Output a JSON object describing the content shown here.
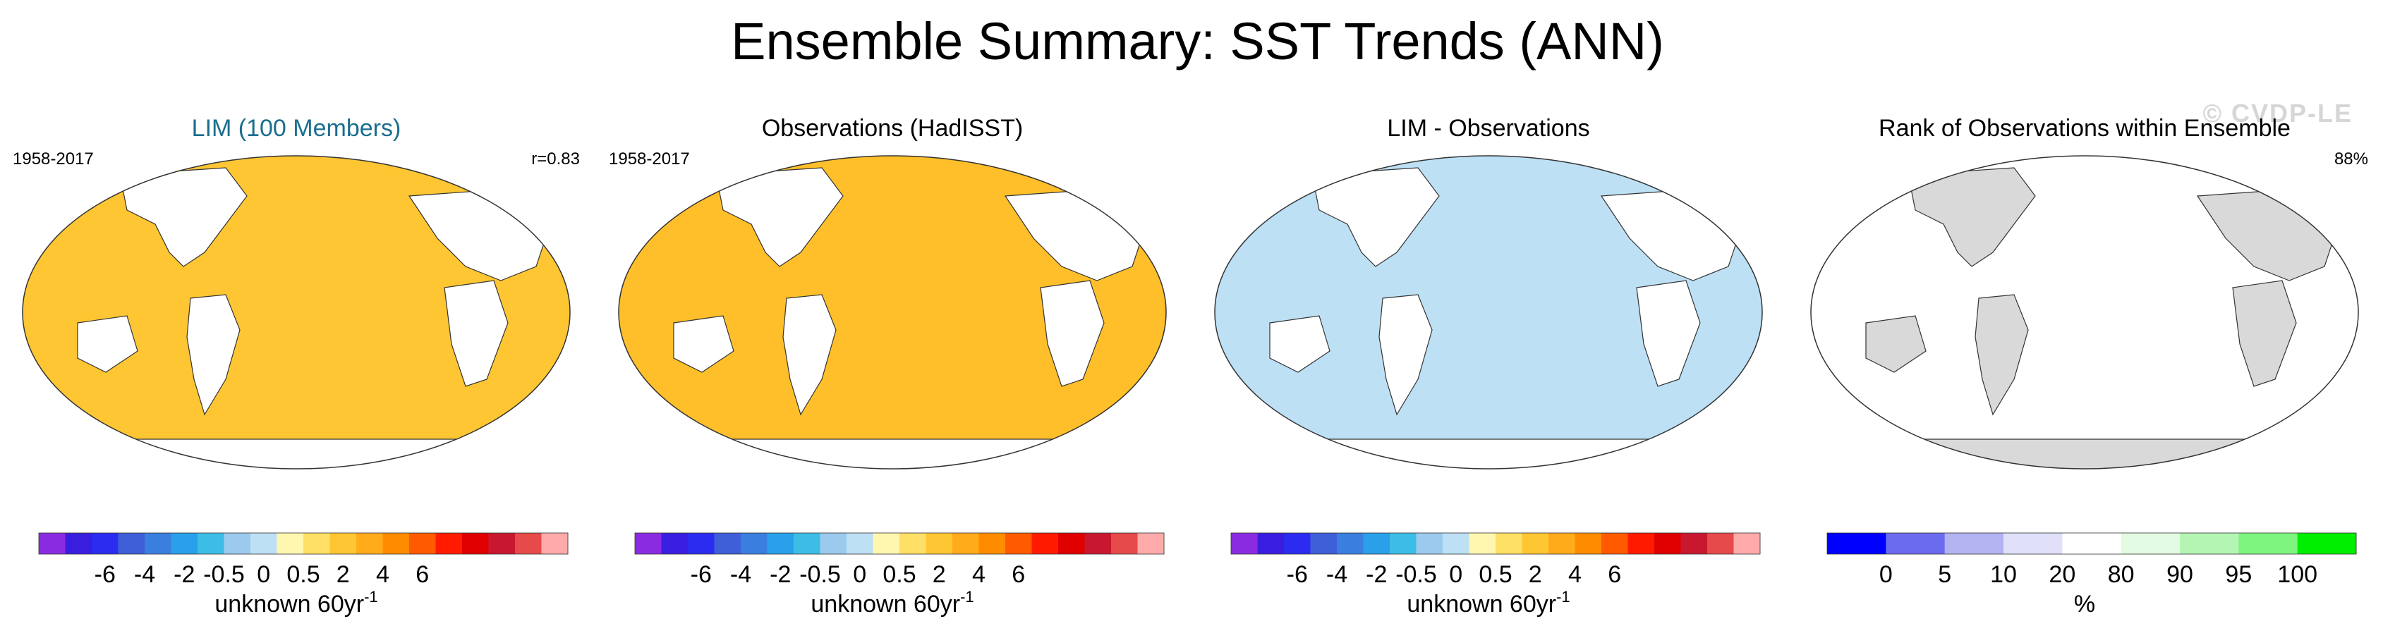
{
  "title": "Ensemble Summary: SST Trends (ANN)",
  "watermark": "© CVDP-LE",
  "trend_colorbar": {
    "colors": [
      "#8a2be2",
      "#3a1ee0",
      "#2c2cf0",
      "#3f5fd8",
      "#3a7fe0",
      "#2aa0ea",
      "#3cbde6",
      "#9ccaee",
      "#bde0f5",
      "#fff6b0",
      "#ffe066",
      "#ffc633",
      "#ffab1a",
      "#ff8c00",
      "#ff5a00",
      "#ff1a00",
      "#e00000",
      "#c81830",
      "#e64a4a",
      "#ffaaaa"
    ],
    "tick_labels": [
      "-6",
      "-4",
      "-2",
      "-0.5",
      "0",
      "0.5",
      "2",
      "4",
      "6"
    ],
    "unit_main": "unknown 60yr",
    "unit_sup": "-1"
  },
  "rank_colorbar": {
    "colors": [
      "#0000ff",
      "#6b6bf0",
      "#b3b3f2",
      "#e0e0fa",
      "#ffffff",
      "#e2fbe2",
      "#b4f5b4",
      "#7ef57e",
      "#00ee00"
    ],
    "tick_labels": [
      "0",
      "5",
      "10",
      "20",
      "80",
      "90",
      "95",
      "100"
    ],
    "unit": "%"
  },
  "panels": [
    {
      "title": "LIM (100 Members)",
      "title_color": "#1a6e8e",
      "left_label": "1958-2017",
      "right_label": "r=0.83",
      "colorbar": "trend",
      "fill": "#ffc633"
    },
    {
      "title": "Observations (HadISST)",
      "title_color": "#000000",
      "left_label": "1958-2017",
      "right_label": "",
      "colorbar": "trend",
      "fill": "#ffbf2a"
    },
    {
      "title": "LIM - Observations",
      "title_color": "#000000",
      "left_label": "",
      "right_label": "",
      "colorbar": "trend",
      "fill": "#bde0f5"
    },
    {
      "title": "Rank of Observations within Ensemble",
      "title_color": "#000000",
      "left_label": "",
      "right_label": "88%",
      "colorbar": "rank",
      "fill": "#ffffff"
    }
  ],
  "chart_data": [
    {
      "type": "heatmap",
      "title": "LIM (100 Members)",
      "period": "1958-2017",
      "pattern_correlation": "r=0.83",
      "colorbar_ticks": [
        -6,
        -4,
        -2,
        -0.5,
        0,
        0.5,
        2,
        4,
        6
      ],
      "units": "unknown 60yr-1"
    },
    {
      "type": "heatmap",
      "title": "Observations (HadISST)",
      "period": "1958-2017",
      "colorbar_ticks": [
        -6,
        -4,
        -2,
        -0.5,
        0,
        0.5,
        2,
        4,
        6
      ],
      "units": "unknown 60yr-1"
    },
    {
      "type": "heatmap",
      "title": "LIM - Observations",
      "colorbar_ticks": [
        -6,
        -4,
        -2,
        -0.5,
        0,
        0.5,
        2,
        4,
        6
      ],
      "units": "unknown 60yr-1"
    },
    {
      "type": "heatmap",
      "title": "Rank of Observations within Ensemble",
      "summary_value": "88%",
      "colorbar_ticks": [
        0,
        5,
        10,
        20,
        80,
        90,
        95,
        100
      ],
      "units": "%"
    }
  ]
}
